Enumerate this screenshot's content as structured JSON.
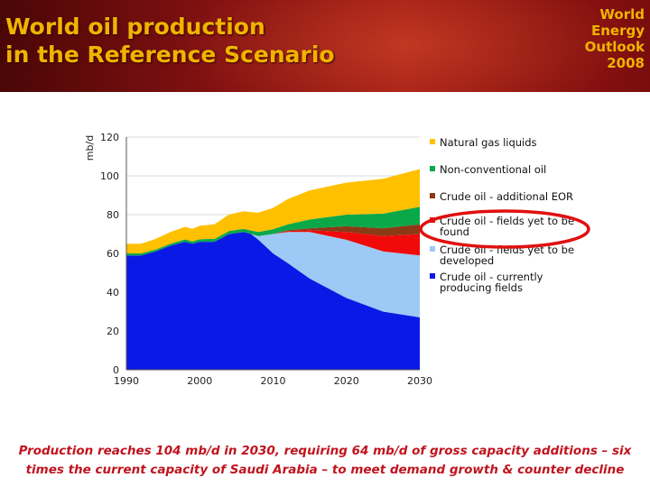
{
  "header": {
    "title_lines": [
      "World oil production",
      "in the Reference Scenario"
    ],
    "logo_lines": [
      "World",
      "Energy",
      "Outlook",
      "2008"
    ]
  },
  "caption": {
    "lines": [
      "Production reaches 104 mb/d in 2030, requiring 64 mb/d of gross capacity additions – six",
      "times the current capacity of Saudi Arabia – to meet demand growth & counter decline"
    ]
  },
  "colors": {
    "highlight_ellipse": "#e01010",
    "caption_text": "#c0141e",
    "title_text": "#f0b400"
  },
  "chart_data": {
    "type": "area",
    "stacked": true,
    "ylabel": "mb/d",
    "xlabel": "",
    "ylim": [
      0,
      120
    ],
    "xlim": [
      1990,
      2030
    ],
    "yticks": [
      0,
      20,
      40,
      60,
      80,
      100,
      120
    ],
    "xticks": [
      1990,
      2000,
      2010,
      2020,
      2030
    ],
    "grid": true,
    "legend_position": "right",
    "x": [
      1990,
      1992,
      1994,
      1996,
      1998,
      1999,
      2000,
      2002,
      2004,
      2006,
      2007,
      2008,
      2010,
      2012,
      2015,
      2020,
      2025,
      2030
    ],
    "series": [
      {
        "name": "Crude oil - currently producing fields",
        "color": "#0a1ae6",
        "values": [
          59,
          59,
          61,
          64,
          66,
          65,
          66,
          66,
          70,
          71,
          70,
          67,
          60,
          55,
          47,
          37,
          30,
          27
        ]
      },
      {
        "name": "Crude oil - fields yet to be developed",
        "color": "#9cc9f5",
        "values": [
          0,
          0,
          0,
          0,
          0,
          0,
          0,
          0,
          0,
          0,
          0,
          2,
          10,
          16,
          24,
          30,
          31,
          32
        ]
      },
      {
        "name": "Crude oil - fields yet to be found",
        "color": "#f00a0a",
        "values": [
          0,
          0,
          0,
          0,
          0,
          0,
          0,
          0,
          0,
          0,
          0,
          0,
          0,
          0.5,
          1,
          4,
          8,
          11
        ]
      },
      {
        "name": "Crude oil - additional EOR",
        "color": "#8b3a15",
        "values": [
          0,
          0,
          0,
          0,
          0,
          0,
          0,
          0,
          0,
          0,
          0,
          0,
          0,
          0.5,
          1,
          3,
          4,
          5
        ]
      },
      {
        "name": "Non-conventional oil",
        "color": "#0ba84a",
        "values": [
          1,
          1,
          1,
          1,
          1.2,
          1.2,
          1.3,
          1.5,
          1.6,
          1.7,
          1.8,
          2,
          2.5,
          3,
          4.5,
          6,
          7.5,
          9
        ]
      },
      {
        "name": "Natural gas liquids",
        "color": "#ffc000",
        "values": [
          5,
          5,
          5.5,
          6,
          6.5,
          6.5,
          7,
          7.5,
          8.5,
          9,
          9.5,
          10,
          11,
          13,
          15,
          16.5,
          18,
          19.5
        ]
      }
    ],
    "legend_order": [
      "Natural gas liquids",
      "Non-conventional oil",
      "Crude oil - additional EOR",
      "Crude oil - fields yet to be found",
      "Crude oil - fields yet to be developed",
      "Crude oil - currently producing fields"
    ]
  }
}
